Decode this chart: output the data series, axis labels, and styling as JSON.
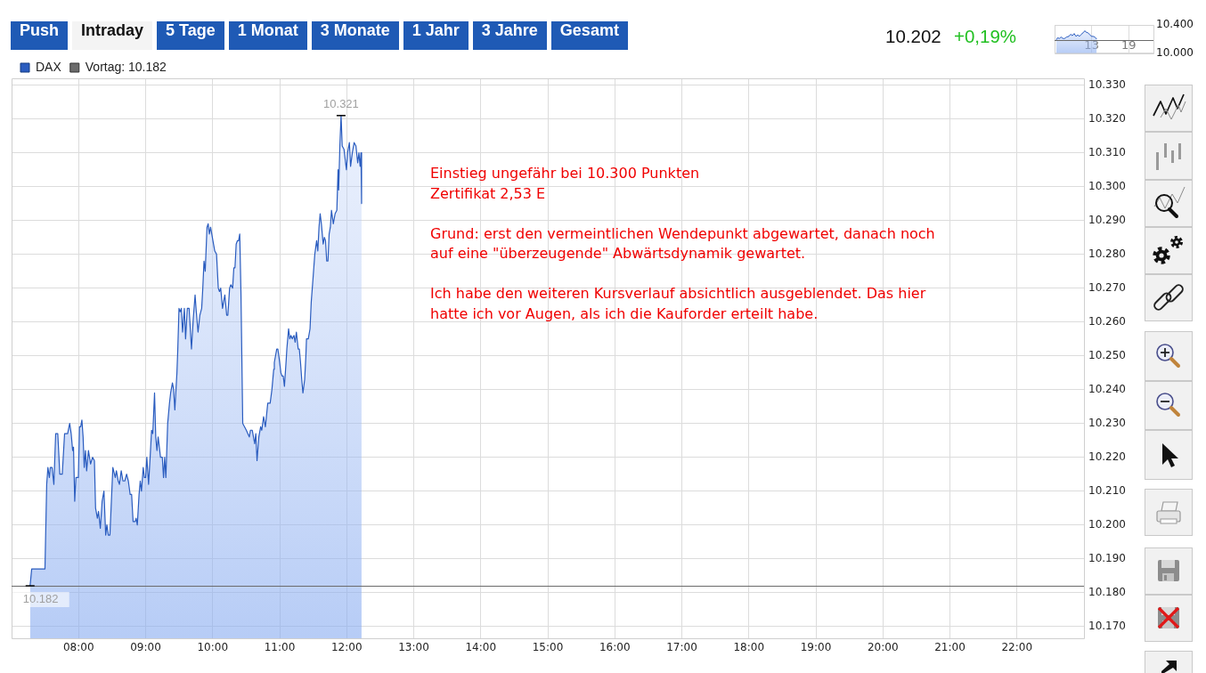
{
  "chart_data": [
    {
      "type": "area",
      "annotations": [
        "Push",
        "Intraday",
        "5 Tage",
        "1 Monat",
        "3 Monate",
        "1 Jahr",
        "3 Jahre",
        "Gesamt",
        "10.202",
        "+0,19%",
        "Einstieg ungefähr bei 10.300 Punkten\nZertifikat 2,53 E\n\nGrund: erst den vermeintlichen Wendepunkt abgewartet, danach noch\nauf eine \"überzeugende\" Abwärtsdynamik gewartet.\n\nIch habe den weiteren Kursverlauf absichtlich ausgeblendet. Das hier\nhatte ich vor Augen, als ich die Kauforder erteilt habe.",
        {
          "text": "10.321",
          "x": 11.916,
          "y": 10321
        },
        {
          "text": "10.182",
          "x": 7.276,
          "y": 10182
        }
      ],
      "x": [
        7.276,
        7.3,
        7.498,
        7.524,
        7.542,
        7.564,
        7.578,
        7.604,
        7.631,
        7.658,
        7.689,
        7.72,
        7.756,
        7.791,
        7.836,
        7.867,
        7.889,
        7.911,
        7.924,
        7.942,
        7.96,
        7.996,
        8.013,
        8.031,
        8.049,
        8.067,
        8.084,
        8.102,
        8.12,
        8.147,
        8.178,
        8.209,
        8.236,
        8.253,
        8.28,
        8.298,
        8.324,
        8.351,
        8.378,
        8.404,
        8.422,
        8.444,
        8.467,
        8.511,
        8.547,
        8.564,
        8.591,
        8.609,
        8.636,
        8.662,
        8.689,
        8.716,
        8.742,
        8.769,
        8.791,
        8.813,
        8.844,
        8.858,
        8.876,
        8.902,
        8.92,
        8.938,
        8.964,
        8.982,
        9.0,
        9.018,
        9.044,
        9.067,
        9.089,
        9.107,
        9.133,
        9.151,
        9.169,
        9.187,
        9.222,
        9.249,
        9.267,
        9.284,
        9.302,
        9.329,
        9.356,
        9.373,
        9.4,
        9.418,
        9.436,
        9.467,
        9.48,
        9.498,
        9.516,
        9.533,
        9.551,
        9.578,
        9.596,
        9.622,
        9.649,
        9.684,
        9.711,
        9.738,
        9.756,
        9.782,
        9.809,
        9.836,
        9.853,
        9.871,
        9.889,
        9.916,
        9.933,
        9.951,
        9.969,
        9.987,
        10.004,
        10.031,
        10.058,
        10.084,
        10.102,
        10.12,
        10.147,
        10.164,
        10.182,
        10.209,
        10.227,
        10.253,
        10.271,
        10.298,
        10.316,
        10.333,
        10.351,
        10.369,
        10.387,
        10.404,
        10.422,
        10.449,
        10.476,
        10.502,
        10.547,
        10.564,
        10.591,
        10.609,
        10.627,
        10.644,
        10.662,
        10.689,
        10.716,
        10.733,
        10.76,
        10.787,
        10.822,
        10.858,
        10.884,
        10.911,
        10.92,
        10.956,
        10.973,
        11.0,
        11.018,
        11.036,
        11.053,
        11.071,
        11.098,
        11.107,
        11.133,
        11.151,
        11.169,
        11.187,
        11.213,
        11.231,
        11.249,
        11.276,
        11.293,
        11.311,
        11.329,
        11.347,
        11.373,
        11.391,
        11.4,
        11.427,
        11.453,
        11.471,
        11.498,
        11.524,
        11.551,
        11.569,
        11.587,
        11.604,
        11.622,
        11.649,
        11.667,
        11.684,
        11.702,
        11.72,
        11.738,
        11.756,
        11.773,
        11.8,
        11.827,
        11.853,
        11.871,
        11.88,
        11.898,
        11.916,
        11.933,
        11.96,
        11.996,
        12.013,
        12.04,
        12.058,
        12.084,
        12.111,
        12.138,
        12.164,
        12.182,
        12.2,
        12.213,
        12.222
      ],
      "series": [
        {
          "name": "DAX",
          "color": "#2a5cbf",
          "values": [
            10182,
            10187,
            10187,
            10212,
            10217,
            10214,
            10217,
            10217,
            10212,
            10227,
            10227,
            10215,
            10215,
            10227,
            10227,
            10230,
            10227,
            10222,
            10223,
            10207,
            10214,
            10214,
            10229,
            10229,
            10231,
            10226,
            10217,
            10222,
            10216,
            10222,
            10218,
            10220,
            10219,
            10205,
            10202,
            10204,
            10199,
            10207,
            10210,
            10197,
            10200,
            10197,
            10197,
            10217,
            10214,
            10216,
            10213,
            10212,
            10216,
            10213,
            10213,
            10215,
            10213,
            10209,
            10209,
            10201,
            10201,
            10202,
            10200,
            10209,
            10213,
            10210,
            10217,
            10214,
            10214,
            10220,
            10212,
            10220,
            10228,
            10227,
            10239,
            10226,
            10222,
            10226,
            10220,
            10220,
            10214,
            10220,
            10214,
            10230,
            10236,
            10239,
            10242,
            10240,
            10234,
            10245,
            10252,
            10264,
            10263,
            10264,
            10257,
            10264,
            10255,
            10264,
            10264,
            10252,
            10261,
            10268,
            10263,
            10257,
            10262,
            10264,
            10270,
            10278,
            10275,
            10288,
            10289,
            10286,
            10288,
            10286,
            10284,
            10281,
            10280,
            10270,
            10269,
            10270,
            10264,
            10266,
            10268,
            10262,
            10262,
            10270,
            10271,
            10270,
            10276,
            10276,
            10283,
            10284,
            10284,
            10286,
            10269,
            10230,
            10229,
            10228,
            10226,
            10228,
            10228,
            10226,
            10224,
            10227,
            10219,
            10226,
            10229,
            10228,
            10232,
            10229,
            10236,
            10236,
            10240,
            10246,
            10248,
            10252,
            10252,
            10248,
            10245,
            10244,
            10244,
            10241,
            10249,
            10252,
            10258,
            10255,
            10256,
            10255,
            10256,
            10254,
            10257,
            10252,
            10252,
            10248,
            10243,
            10239,
            10243,
            10250,
            10255,
            10255,
            10258,
            10266,
            10273,
            10280,
            10284,
            10281,
            10288,
            10292,
            10289,
            10283,
            10285,
            10284,
            10278,
            10278,
            10286,
            10288,
            10293,
            10289,
            10292,
            10293,
            10305,
            10299,
            10312,
            10321,
            10312,
            10311,
            10305,
            10310,
            10313,
            10306,
            10310,
            10313,
            10312,
            10307,
            10310,
            10306,
            10310,
            10295
          ]
        }
      ],
      "xlim": [
        7,
        23
      ],
      "xticks": [
        {
          "value": 8,
          "label": "08:00"
        },
        {
          "value": 9,
          "label": "09:00"
        },
        {
          "value": 10,
          "label": "10:00"
        },
        {
          "value": 11,
          "label": "11:00"
        },
        {
          "value": 12,
          "label": "12:00"
        },
        {
          "value": 13,
          "label": "13:00"
        },
        {
          "value": 14,
          "label": "14:00"
        },
        {
          "value": 15,
          "label": "15:00"
        },
        {
          "value": 16,
          "label": "16:00"
        },
        {
          "value": 17,
          "label": "17:00"
        },
        {
          "value": 18,
          "label": "18:00"
        },
        {
          "value": 19,
          "label": "19:00"
        },
        {
          "value": 20,
          "label": "20:00"
        },
        {
          "value": 21,
          "label": "21:00"
        },
        {
          "value": 22,
          "label": "22:00"
        }
      ],
      "ylim": [
        10166.5,
        10332
      ],
      "yticks": [
        {
          "value": 10170,
          "label": "10.170"
        },
        {
          "value": 10180,
          "label": "10.180"
        },
        {
          "value": 10190,
          "label": "10.190"
        },
        {
          "value": 10200,
          "label": "10.200"
        },
        {
          "value": 10210,
          "label": "10.210"
        },
        {
          "value": 10220,
          "label": "10.220"
        },
        {
          "value": 10230,
          "label": "10.230"
        },
        {
          "value": 10240,
          "label": "10.240"
        },
        {
          "value": 10250,
          "label": "10.250"
        },
        {
          "value": 10260,
          "label": "10.260"
        },
        {
          "value": 10270,
          "label": "10.270"
        },
        {
          "value": 10280,
          "label": "10.280"
        },
        {
          "value": 10290,
          "label": "10.290"
        },
        {
          "value": 10300,
          "label": "10.300"
        },
        {
          "value": 10310,
          "label": "10.310"
        },
        {
          "value": 10320,
          "label": "10.320"
        },
        {
          "value": 10330,
          "label": "10.330"
        }
      ],
      "ref_lines": [
        {
          "axis": "y",
          "value": 10182,
          "label": "Vortag: 10.182",
          "color": "#6b6b6b"
        }
      ],
      "grid": true,
      "legend": "top left"
    },
    {
      "type": "area",
      "x": [
        7.29,
        7.48,
        7.77,
        8.05,
        8.34,
        8.63,
        8.92,
        9.31,
        9.59,
        9.88,
        10.17,
        10.46,
        10.75,
        11.03,
        11.32,
        11.61,
        11.9,
        12.09,
        12.38,
        12.66,
        12.95,
        13.24,
        13.53,
        13.82
      ],
      "series": [
        {
          "color": "#2a5cbf",
          "values": [
            10190,
            10220,
            10210,
            10230,
            10210,
            10210,
            10230,
            10240,
            10270,
            10250,
            10280,
            10240,
            10260,
            10240,
            10270,
            10290,
            10320,
            10300,
            10290,
            10270,
            10240,
            10240,
            10230,
            10200
          ]
        }
      ],
      "xlim": [
        7,
        23
      ],
      "xticks": [
        13,
        19
      ],
      "ylim": [
        10000,
        10400
      ],
      "yticks": [
        {
          "value": 10000,
          "label": "10.000"
        },
        {
          "value": 10400,
          "label": "10.400"
        }
      ],
      "ref_lines": [
        {
          "axis": "y",
          "value": 10182,
          "color": "#6b6b6b"
        }
      ],
      "grid": true
    }
  ]
}
